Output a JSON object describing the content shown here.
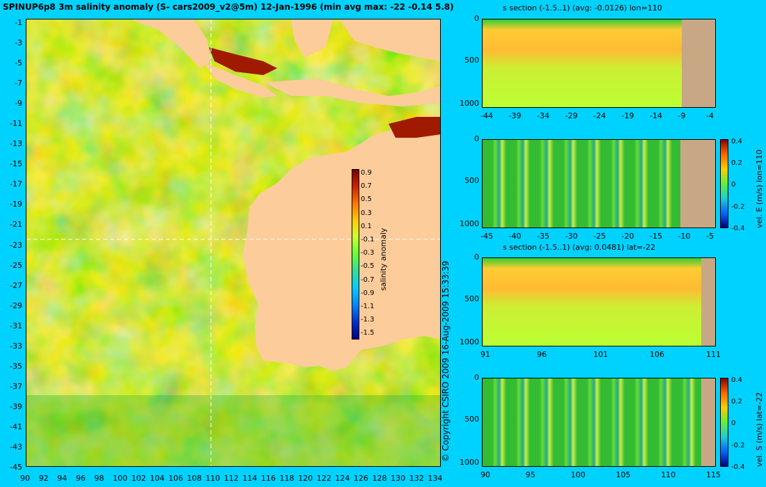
{
  "main_title": "SPINUP6p8 3m salinity anomaly (S- cars2009_v2@5m) 12-Jan-1996 (min avg max: -22 -0.14 5.8)",
  "copyright": "© Copyright CSIRO 2009   16-Aug-2009 15:33:39",
  "map": {
    "lat_ticks": [
      "-1",
      "-3",
      "-5",
      "-7",
      "-9",
      "-11",
      "-13",
      "-15",
      "-17",
      "-19",
      "-21",
      "-23",
      "-25",
      "-27",
      "-29",
      "-31",
      "-33",
      "-35",
      "-37",
      "-39",
      "-41",
      "-43",
      "-45"
    ],
    "lon_ticks": [
      "90",
      "92",
      "94",
      "96",
      "98",
      "100",
      "102",
      "104",
      "106",
      "108",
      "110",
      "112",
      "114",
      "116",
      "118",
      "120",
      "122",
      "124",
      "126",
      "128",
      "130",
      "132",
      "134"
    ],
    "crosshair": {
      "lon": 110,
      "lat": -22
    },
    "colorbar": {
      "label": "salinity anomaly",
      "ticks": [
        "0.9",
        "0.7",
        "0.5",
        "0.3",
        "0.1",
        "-0.1",
        "-0.3",
        "-0.5",
        "-0.7",
        "-0.9",
        "-1.1",
        "-1.3",
        "-1.5"
      ]
    }
  },
  "panels": [
    {
      "title": "s section (-1.5..1) (avg: -0.0126) lon=110",
      "x_ticks": [
        "-44",
        "-39",
        "-34",
        "-29",
        "-24",
        "-19",
        "-14",
        "-9",
        "-4"
      ],
      "y_ticks": [
        "0",
        "500",
        "1000"
      ],
      "colorbar": null
    },
    {
      "title": "",
      "x_ticks": [
        "-45",
        "-40",
        "-35",
        "-30",
        "-25",
        "-20",
        "-15",
        "-10",
        "-5"
      ],
      "y_ticks": [
        "0",
        "500",
        "1000"
      ],
      "colorbar": {
        "label": "vel. E (m/s) lon=110",
        "ticks": [
          "0.4",
          "0.2",
          "0",
          "-0.2",
          "-0.4"
        ]
      }
    },
    {
      "title": "s section (-1.5..1) (avg: 0.0481) lat=-22",
      "x_ticks": [
        "91",
        "96",
        "101",
        "106",
        "111"
      ],
      "y_ticks": [
        "0",
        "500",
        "1000"
      ],
      "colorbar": null
    },
    {
      "title": "",
      "x_ticks": [
        "90",
        "95",
        "100",
        "105",
        "110",
        "115"
      ],
      "y_ticks": [
        "0",
        "500",
        "1000"
      ],
      "colorbar": {
        "label": "vel. S (m/s) lat=-22",
        "ticks": [
          "0.4",
          "0.2",
          "0",
          "-0.2",
          "-0.4"
        ]
      }
    }
  ]
}
